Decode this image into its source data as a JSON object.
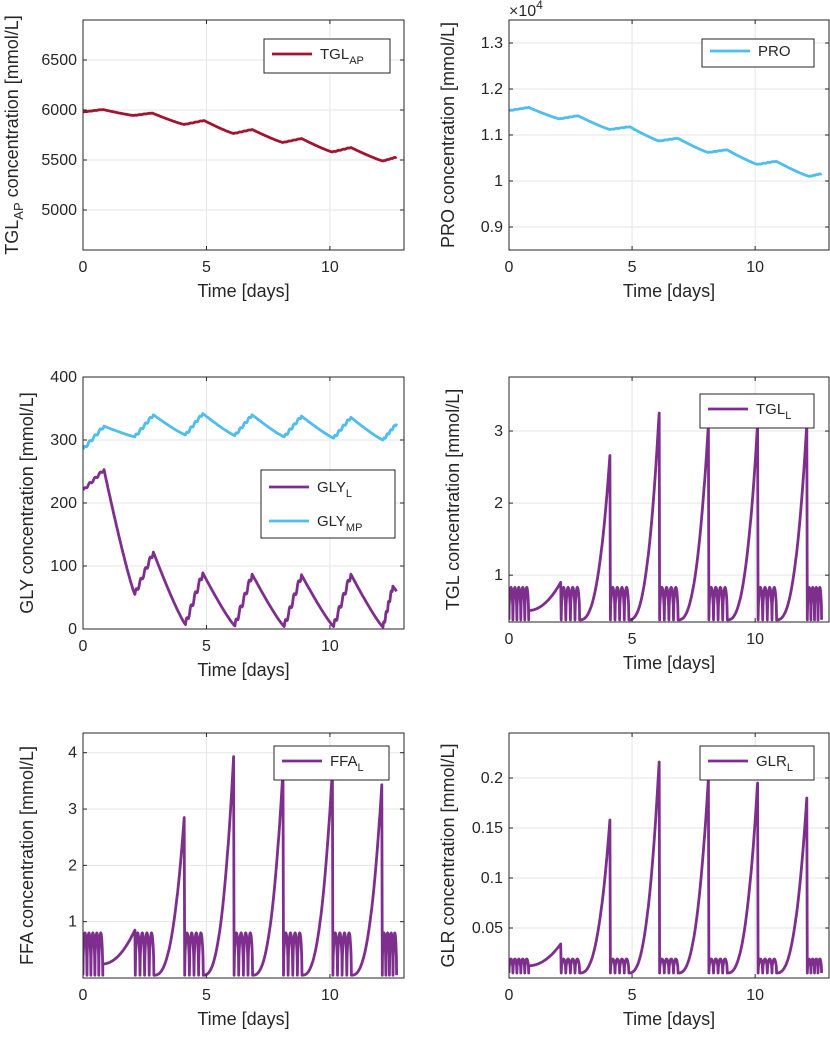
{
  "figure": {
    "panels_layout": "3 rows x 2 columns",
    "background": "#ffffff"
  },
  "chart_data": [
    {
      "id": "tglap",
      "type": "line",
      "xlabel": "Time [days]",
      "ylabel_main": "TGL",
      "ylabel_sub": "AP",
      "ylabel_rest": " concentration [mmol/L]",
      "xlim": [
        0,
        13
      ],
      "ylim": [
        4600,
        6900
      ],
      "xticks": [
        0,
        5,
        10
      ],
      "yticks": [
        5000,
        5500,
        6000,
        6500
      ],
      "ytick_labels": [
        "5000",
        "5500",
        "6000",
        "6500"
      ],
      "grid": true,
      "legend_position": "top-right",
      "series": [
        {
          "name": "TGL",
          "name_sub": "AP",
          "color": "#a2142f",
          "kind": "piecewise",
          "period": 2,
          "segments": [
            {
              "t": [
                0,
                0.8
              ],
              "v": [
                5980,
                6005
              ]
            },
            {
              "t": [
                0.8,
                2.05
              ],
              "v": [
                6005,
                5945
              ],
              "curve": "decay"
            },
            {
              "t": [
                2.05,
                2.8
              ],
              "v": [
                5945,
                5970
              ]
            },
            {
              "t": [
                2.8,
                4.1
              ],
              "v": [
                5970,
                5855
              ],
              "curve": "decay"
            },
            {
              "t": [
                4.1,
                4.9
              ],
              "v": [
                5855,
                5895
              ]
            },
            {
              "t": [
                4.9,
                6.1
              ],
              "v": [
                5895,
                5765
              ],
              "curve": "decay"
            },
            {
              "t": [
                6.1,
                6.85
              ],
              "v": [
                5765,
                5805
              ]
            },
            {
              "t": [
                6.85,
                8.1
              ],
              "v": [
                5805,
                5675
              ],
              "curve": "decay"
            },
            {
              "t": [
                8.1,
                8.85
              ],
              "v": [
                5675,
                5715
              ]
            },
            {
              "t": [
                8.85,
                10.1
              ],
              "v": [
                5715,
                5580
              ],
              "curve": "decay"
            },
            {
              "t": [
                10.1,
                10.85
              ],
              "v": [
                5580,
                5625
              ]
            },
            {
              "t": [
                10.85,
                12.15
              ],
              "v": [
                5625,
                5490
              ],
              "curve": "decay"
            },
            {
              "t": [
                12.15,
                12.7
              ],
              "v": [
                5490,
                5530
              ]
            }
          ]
        }
      ]
    },
    {
      "id": "pro",
      "type": "line",
      "xlabel": "Time [days]",
      "ylabel_main": "PRO concentration [mmol/L]",
      "ylabel_sub": "",
      "ylabel_rest": "",
      "exponent_label": "×10",
      "exponent_power": "4",
      "xlim": [
        0,
        13
      ],
      "ylim": [
        0.85,
        1.35
      ],
      "xticks": [
        0,
        5,
        10
      ],
      "yticks": [
        0.9,
        1,
        1.1,
        1.2,
        1.3
      ],
      "ytick_labels": [
        "0.9",
        "1",
        "1.1",
        "1.2",
        "1.3"
      ],
      "grid": true,
      "legend_position": "top-right",
      "series": [
        {
          "name": "PRO",
          "name_sub": "",
          "color": "#4dbeee",
          "kind": "piecewise",
          "segments": [
            {
              "t": [
                0,
                0.8
              ],
              "v": [
                1.153,
                1.16
              ]
            },
            {
              "t": [
                0.8,
                2.05
              ],
              "v": [
                1.16,
                1.135
              ],
              "curve": "decay"
            },
            {
              "t": [
                2.05,
                2.8
              ],
              "v": [
                1.135,
                1.142
              ]
            },
            {
              "t": [
                2.8,
                4.1
              ],
              "v": [
                1.142,
                1.112
              ],
              "curve": "decay"
            },
            {
              "t": [
                4.1,
                4.9
              ],
              "v": [
                1.112,
                1.118
              ]
            },
            {
              "t": [
                4.9,
                6.1
              ],
              "v": [
                1.118,
                1.087
              ],
              "curve": "decay"
            },
            {
              "t": [
                6.1,
                6.85
              ],
              "v": [
                1.087,
                1.093
              ]
            },
            {
              "t": [
                6.85,
                8.1
              ],
              "v": [
                1.093,
                1.062
              ],
              "curve": "decay"
            },
            {
              "t": [
                8.1,
                8.85
              ],
              "v": [
                1.062,
                1.068
              ]
            },
            {
              "t": [
                8.85,
                10.1
              ],
              "v": [
                1.068,
                1.036
              ],
              "curve": "decay"
            },
            {
              "t": [
                10.1,
                10.85
              ],
              "v": [
                1.036,
                1.043
              ]
            },
            {
              "t": [
                10.85,
                12.2
              ],
              "v": [
                1.043,
                1.01
              ],
              "curve": "decay"
            },
            {
              "t": [
                12.2,
                12.7
              ],
              "v": [
                1.01,
                1.016
              ]
            }
          ]
        }
      ]
    },
    {
      "id": "gly",
      "type": "line",
      "xlabel": "Time [days]",
      "ylabel_main": "GLY concentration [mmol/L]",
      "ylabel_sub": "",
      "ylabel_rest": "",
      "xlim": [
        0,
        13
      ],
      "ylim": [
        0,
        400
      ],
      "xticks": [
        0,
        5,
        10
      ],
      "yticks": [
        0,
        100,
        200,
        300,
        400
      ],
      "ytick_labels": [
        "0",
        "100",
        "200",
        "300",
        "400"
      ],
      "grid": true,
      "legend_position": "center-right",
      "series": [
        {
          "name": "GLY",
          "name_sub": "L",
          "color": "#7e2f8e",
          "kind": "piecewise",
          "segments": [
            {
              "t": [
                0,
                0.85
              ],
              "v": [
                220,
                253
              ]
            },
            {
              "t": [
                0.85,
                2.1
              ],
              "v": [
                253,
                55
              ],
              "curve": "decay"
            },
            {
              "t": [
                2.1,
                2.85
              ],
              "v": [
                55,
                122
              ]
            },
            {
              "t": [
                2.85,
                4.15
              ],
              "v": [
                122,
                7
              ],
              "curve": "decay"
            },
            {
              "t": [
                4.15,
                4.85
              ],
              "v": [
                7,
                89
              ]
            },
            {
              "t": [
                4.85,
                6.15
              ],
              "v": [
                89,
                5
              ],
              "curve": "decay"
            },
            {
              "t": [
                6.15,
                6.85
              ],
              "v": [
                5,
                87
              ]
            },
            {
              "t": [
                6.85,
                8.15
              ],
              "v": [
                87,
                4
              ],
              "curve": "decay"
            },
            {
              "t": [
                8.15,
                8.85
              ],
              "v": [
                4,
                86
              ]
            },
            {
              "t": [
                8.85,
                10.15
              ],
              "v": [
                86,
                4
              ],
              "curve": "decay"
            },
            {
              "t": [
                10.15,
                10.85
              ],
              "v": [
                4,
                87
              ]
            },
            {
              "t": [
                10.85,
                12.15
              ],
              "v": [
                87,
                3
              ],
              "curve": "decay"
            },
            {
              "t": [
                12.15,
                12.55
              ],
              "v": [
                3,
                68
              ]
            },
            {
              "t": [
                12.55,
                12.7
              ],
              "v": [
                68,
                60
              ]
            }
          ]
        },
        {
          "name": "GLY",
          "name_sub": "MP",
          "color": "#4dbeee",
          "kind": "piecewise",
          "segments": [
            {
              "t": [
                0,
                0.85
              ],
              "v": [
                285,
                322
              ]
            },
            {
              "t": [
                0.85,
                2.1
              ],
              "v": [
                322,
                305
              ],
              "curve": "decay"
            },
            {
              "t": [
                2.1,
                2.85
              ],
              "v": [
                305,
                340
              ]
            },
            {
              "t": [
                2.85,
                4.15
              ],
              "v": [
                340,
                308
              ],
              "curve": "decay"
            },
            {
              "t": [
                4.15,
                4.85
              ],
              "v": [
                308,
                342
              ]
            },
            {
              "t": [
                4.85,
                6.15
              ],
              "v": [
                342,
                307
              ],
              "curve": "decay"
            },
            {
              "t": [
                6.15,
                6.85
              ],
              "v": [
                307,
                340
              ]
            },
            {
              "t": [
                6.85,
                8.15
              ],
              "v": [
                340,
                305
              ],
              "curve": "decay"
            },
            {
              "t": [
                8.15,
                8.85
              ],
              "v": [
                305,
                338
              ]
            },
            {
              "t": [
                8.85,
                10.15
              ],
              "v": [
                338,
                303
              ],
              "curve": "decay"
            },
            {
              "t": [
                10.15,
                10.85
              ],
              "v": [
                303,
                336
              ]
            },
            {
              "t": [
                10.85,
                12.15
              ],
              "v": [
                336,
                300
              ],
              "curve": "decay"
            },
            {
              "t": [
                12.15,
                12.7
              ],
              "v": [
                300,
                326
              ]
            }
          ]
        }
      ]
    },
    {
      "id": "tgl",
      "type": "line",
      "xlabel": "Time [days]",
      "ylabel_main": "TGL concentration [mmol/L]",
      "ylabel_sub": "",
      "ylabel_rest": "",
      "xlim": [
        0,
        13
      ],
      "ylim": [
        0.35,
        3.75
      ],
      "xticks": [
        0,
        5,
        10
      ],
      "yticks": [
        1,
        2,
        3
      ],
      "ytick_labels": [
        "1",
        "2",
        "3"
      ],
      "grid": true,
      "legend_position": "top-right",
      "series": [
        {
          "name": "TGL",
          "name_sub": "L",
          "color": "#7e2f8e",
          "kind": "spiky",
          "base": 0.38,
          "osc_amp": 0.45,
          "peaks": [
            {
              "t": 2.1,
              "v": 0.9
            },
            {
              "t": 4.1,
              "v": 2.66
            },
            {
              "t": 6.1,
              "v": 3.25
            },
            {
              "t": 8.1,
              "v": 3.1
            },
            {
              "t": 10.1,
              "v": 3.1
            },
            {
              "t": 12.1,
              "v": 3.1
            }
          ]
        }
      ]
    },
    {
      "id": "ffa",
      "type": "line",
      "xlabel": "Time [days]",
      "ylabel_main": "FFA concentration [mmol/L]",
      "ylabel_sub": "",
      "ylabel_rest": "",
      "xlim": [
        0,
        13
      ],
      "ylim": [
        0,
        4.35
      ],
      "xticks": [
        0,
        5,
        10
      ],
      "yticks": [
        1,
        2,
        3,
        4
      ],
      "ytick_labels": [
        "1",
        "2",
        "3",
        "4"
      ],
      "grid": true,
      "legend_position": "top-right",
      "series": [
        {
          "name": "FFA",
          "name_sub": "L",
          "color": "#7e2f8e",
          "kind": "spiky",
          "base": 0.05,
          "osc_amp": 0.75,
          "peaks": [
            {
              "t": 2.1,
              "v": 0.85
            },
            {
              "t": 4.1,
              "v": 2.85
            },
            {
              "t": 6.1,
              "v": 3.93
            },
            {
              "t": 8.1,
              "v": 3.7
            },
            {
              "t": 10.1,
              "v": 3.7
            },
            {
              "t": 12.1,
              "v": 3.43
            }
          ]
        }
      ]
    },
    {
      "id": "glr",
      "type": "line",
      "xlabel": "Time [days]",
      "ylabel_main": "GLR concentration [mmol/L]",
      "ylabel_sub": "",
      "ylabel_rest": "",
      "xlim": [
        0,
        13
      ],
      "ylim": [
        0,
        0.245
      ],
      "xticks": [
        0,
        5,
        10
      ],
      "yticks": [
        0.05,
        0.1,
        0.15,
        0.2
      ],
      "ytick_labels": [
        "0.05",
        "0.1",
        "0.15",
        "0.2"
      ],
      "grid": true,
      "legend_position": "top-right",
      "series": [
        {
          "name": "GLR",
          "name_sub": "L",
          "color": "#7e2f8e",
          "kind": "spiky",
          "base": 0.005,
          "osc_amp": 0.014,
          "peaks": [
            {
              "t": 2.1,
              "v": 0.034
            },
            {
              "t": 4.1,
              "v": 0.158
            },
            {
              "t": 6.1,
              "v": 0.216
            },
            {
              "t": 8.1,
              "v": 0.2
            },
            {
              "t": 10.1,
              "v": 0.195
            },
            {
              "t": 12.1,
              "v": 0.18
            }
          ]
        }
      ]
    }
  ]
}
